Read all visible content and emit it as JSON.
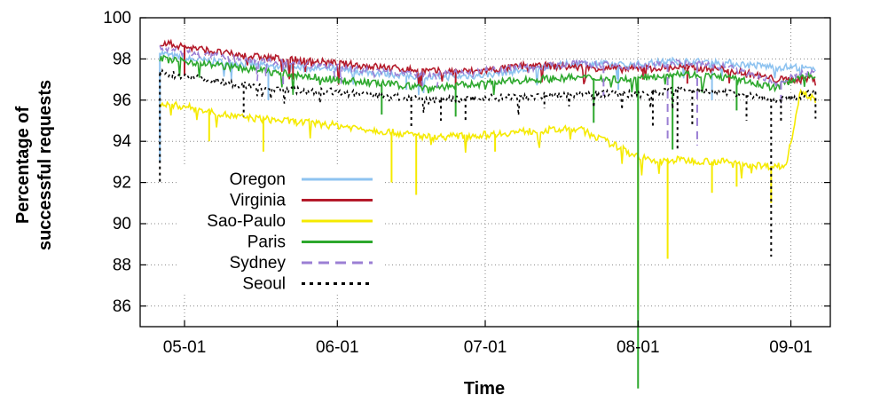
{
  "chart_data": {
    "type": "line",
    "xlabel": "Time",
    "ylabel_lines": [
      "Percentage of",
      "successful requests"
    ],
    "xlim": [
      -9,
      131
    ],
    "ylim": [
      85,
      100
    ],
    "x_ticks": [
      {
        "value": 0,
        "label": "05-01"
      },
      {
        "value": 31,
        "label": "06-01"
      },
      {
        "value": 61,
        "label": "07-01"
      },
      {
        "value": 92,
        "label": "08-01"
      },
      {
        "value": 123,
        "label": "09-01"
      }
    ],
    "y_ticks": [
      86,
      88,
      90,
      92,
      94,
      96,
      98,
      100
    ],
    "grid": true,
    "legend_position": "lower-left",
    "series": [
      {
        "name": "Oregon",
        "color": "#8ec3f0",
        "dash": "solid",
        "points": [
          [
            -5,
            98.3
          ],
          [
            0,
            98.0
          ],
          [
            10,
            97.8
          ],
          [
            20,
            97.6
          ],
          [
            30,
            97.5
          ],
          [
            40,
            97.3
          ],
          [
            50,
            97.1
          ],
          [
            60,
            97.2
          ],
          [
            70,
            97.5
          ],
          [
            80,
            97.8
          ],
          [
            90,
            97.7
          ],
          [
            100,
            97.9
          ],
          [
            110,
            97.8
          ],
          [
            120,
            97.6
          ],
          [
            125,
            97.6
          ],
          [
            128,
            97.4
          ]
        ],
        "dips": [
          [
            -5,
            93
          ],
          [
            17,
            96.0
          ],
          [
            45,
            96.5
          ],
          [
            88,
            96.5
          ],
          [
            107,
            96.0
          ]
        ]
      },
      {
        "name": "Virginia",
        "color": "#b41a2a",
        "dash": "solid",
        "points": [
          [
            -5,
            98.8
          ],
          [
            0,
            98.6
          ],
          [
            10,
            98.2
          ],
          [
            20,
            98.0
          ],
          [
            25,
            97.9
          ],
          [
            30,
            97.8
          ],
          [
            40,
            97.6
          ],
          [
            50,
            97.4
          ],
          [
            60,
            97.4
          ],
          [
            70,
            97.7
          ],
          [
            80,
            97.6
          ],
          [
            90,
            97.5
          ],
          [
            100,
            97.6
          ],
          [
            110,
            97.5
          ],
          [
            120,
            97.0
          ],
          [
            125,
            97.0
          ],
          [
            128,
            97.1
          ]
        ],
        "dips": [
          [
            0,
            97.2
          ],
          [
            22,
            97.0
          ],
          [
            55,
            96.5
          ],
          [
            93,
            97.0
          ],
          [
            102,
            96.8
          ]
        ]
      },
      {
        "name": "Sao-Paulo",
        "color": "#f5ea00",
        "dash": "solid",
        "points": [
          [
            -5,
            95.8
          ],
          [
            0,
            95.7
          ],
          [
            10,
            95.2
          ],
          [
            20,
            95.0
          ],
          [
            30,
            94.8
          ],
          [
            40,
            94.5
          ],
          [
            50,
            94.2
          ],
          [
            60,
            94.3
          ],
          [
            70,
            94.5
          ],
          [
            80,
            94.6
          ],
          [
            90,
            93.5
          ],
          [
            95,
            93.0
          ],
          [
            100,
            93.1
          ],
          [
            110,
            93.0
          ],
          [
            118,
            92.8
          ],
          [
            122,
            92.8
          ],
          [
            125,
            96.5
          ],
          [
            128,
            96.0
          ]
        ],
        "dips": [
          [
            5,
            94.0
          ],
          [
            16,
            93.5
          ],
          [
            42,
            92.0
          ],
          [
            47,
            91.4
          ],
          [
            63,
            93.5
          ],
          [
            92,
            85.8
          ],
          [
            98,
            88.3
          ],
          [
            107,
            91.5
          ],
          [
            112,
            91.8
          ],
          [
            119,
            91.0
          ]
        ]
      },
      {
        "name": "Paris",
        "color": "#2da82d",
        "dash": "solid",
        "points": [
          [
            -5,
            98.0
          ],
          [
            0,
            97.9
          ],
          [
            10,
            97.6
          ],
          [
            20,
            97.3
          ],
          [
            30,
            97.0
          ],
          [
            40,
            96.8
          ],
          [
            50,
            96.6
          ],
          [
            60,
            96.8
          ],
          [
            70,
            97.0
          ],
          [
            80,
            97.1
          ],
          [
            90,
            97.0
          ],
          [
            100,
            97.3
          ],
          [
            110,
            97.1
          ],
          [
            120,
            96.6
          ],
          [
            125,
            97.2
          ],
          [
            128,
            97.2
          ]
        ],
        "dips": [
          [
            40,
            95.3
          ],
          [
            55,
            95.2
          ],
          [
            83,
            94.9
          ],
          [
            92,
            82.0
          ],
          [
            99,
            93.6
          ],
          [
            112,
            95.5
          ]
        ]
      },
      {
        "name": "Sydney",
        "color": "#9b7fd4",
        "dash": "dashed",
        "points": [
          [
            -5,
            98.5
          ],
          [
            0,
            98.3
          ],
          [
            10,
            98.0
          ],
          [
            20,
            97.8
          ],
          [
            30,
            97.6
          ],
          [
            40,
            97.4
          ],
          [
            50,
            97.2
          ],
          [
            60,
            97.4
          ],
          [
            70,
            97.6
          ],
          [
            80,
            97.8
          ],
          [
            90,
            97.6
          ],
          [
            100,
            97.8
          ],
          [
            110,
            97.6
          ],
          [
            120,
            96.8
          ],
          [
            125,
            97.3
          ],
          [
            128,
            97.3
          ]
        ],
        "dips": [
          [
            20,
            96.6
          ],
          [
            85,
            96.2
          ],
          [
            98,
            94.0
          ],
          [
            104,
            93.8
          ],
          [
            121,
            95.8
          ]
        ]
      },
      {
        "name": "Seoul",
        "color": "#000000",
        "dash": "dotted",
        "points": [
          [
            -5,
            97.3
          ],
          [
            0,
            97.2
          ],
          [
            10,
            96.8
          ],
          [
            20,
            96.5
          ],
          [
            30,
            96.4
          ],
          [
            40,
            96.2
          ],
          [
            50,
            96.0
          ],
          [
            60,
            96.1
          ],
          [
            70,
            96.2
          ],
          [
            80,
            96.3
          ],
          [
            90,
            96.3
          ],
          [
            100,
            96.5
          ],
          [
            110,
            96.4
          ],
          [
            120,
            96.0
          ],
          [
            125,
            96.2
          ],
          [
            128,
            96.4
          ]
        ],
        "dips": [
          [
            -5,
            92.0
          ],
          [
            12,
            95.2
          ],
          [
            46,
            94.7
          ],
          [
            52,
            95.0
          ],
          [
            57,
            95.0
          ],
          [
            73,
            95.6
          ],
          [
            95,
            94.7
          ],
          [
            100,
            93.5
          ],
          [
            103,
            94.7
          ],
          [
            114,
            95.0
          ],
          [
            119,
            88.4
          ],
          [
            121,
            95.0
          ],
          [
            128,
            95.1
          ]
        ]
      }
    ]
  }
}
